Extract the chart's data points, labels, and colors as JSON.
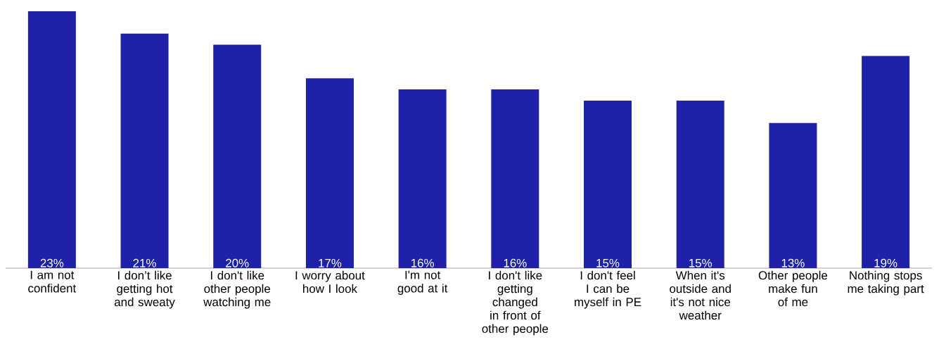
{
  "chart_data": {
    "type": "bar",
    "categories": [
      "I am not confident",
      "I don’t like getting hot and sweaty",
      "I don't like other people watching me",
      "I worry about how I look",
      "I'm not good at it",
      "I don't like getting changed in front of other people",
      "I don't feel I can be myself in PE",
      "When it's outside and it's not nice weather",
      "Other people make fun of me",
      "Nothing stops me taking part"
    ],
    "values": [
      23,
      21,
      20,
      17,
      16,
      16,
      15,
      15,
      13,
      19
    ],
    "value_labels": [
      "23%",
      "21%",
      "20%",
      "17%",
      "16%",
      "16%",
      "15%",
      "15%",
      "13%",
      "19%"
    ],
    "color": "#1f22a8"
  }
}
